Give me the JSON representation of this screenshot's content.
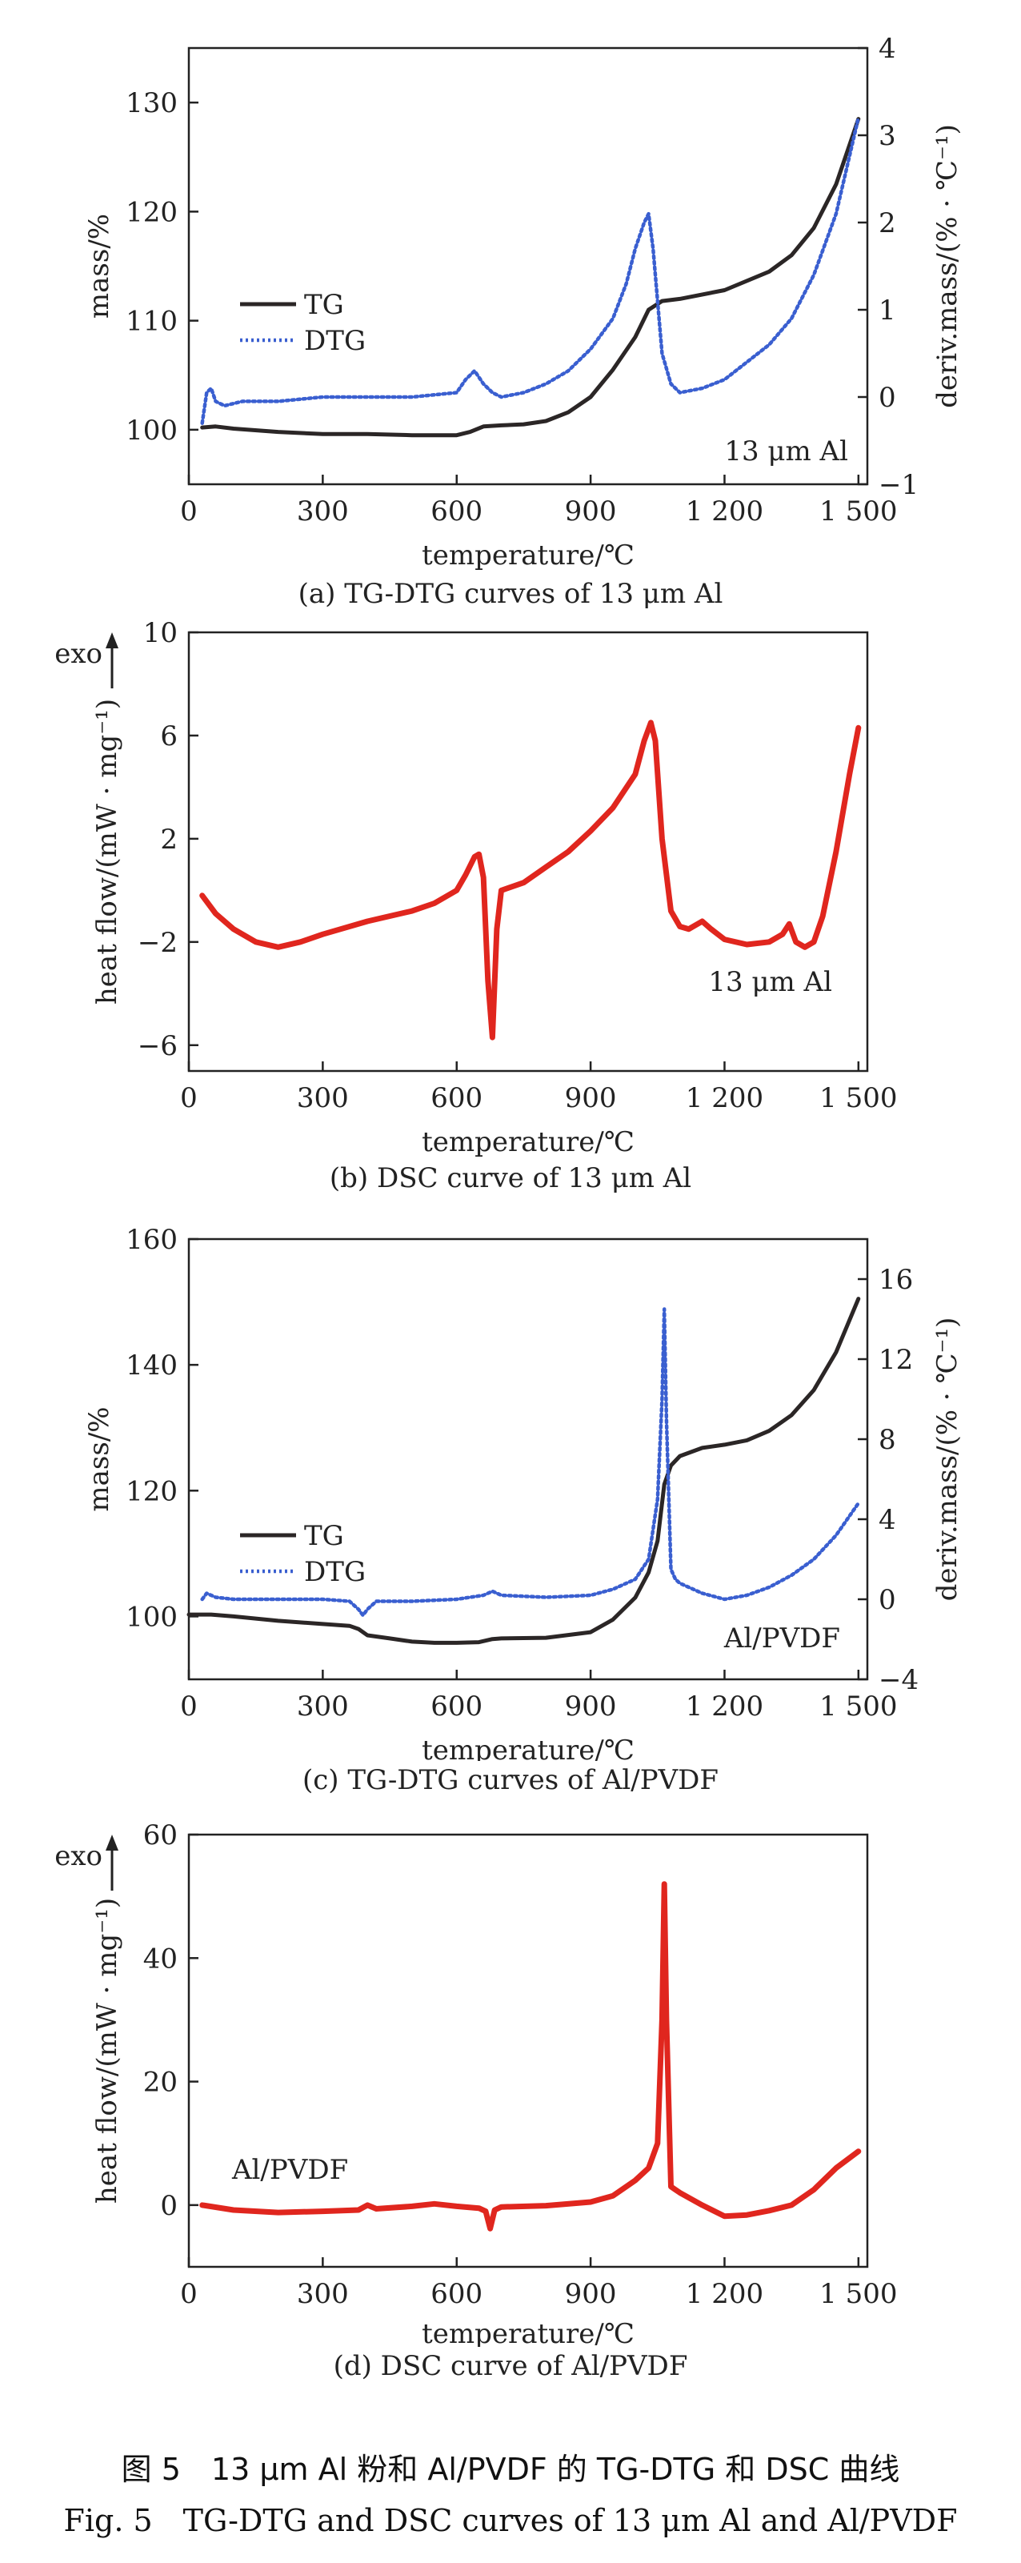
{
  "colors": {
    "tg": "#2b2626",
    "dtg": "#3a5fd0",
    "dsc": "#e0261e",
    "axis": "#222222"
  },
  "chart_data": [
    {
      "id": "a",
      "type": "line",
      "caption": "(a) TG-DTG curves of 13 μm Al",
      "xlabel": "temperature/℃",
      "ylabel": "mass/%",
      "y2label": "deriv.mass/(% · ℃⁻¹)",
      "annotation": "13 μm Al",
      "xlim": [
        0,
        1520
      ],
      "ylim": [
        95,
        135
      ],
      "y2lim": [
        -1,
        4
      ],
      "xticks": [
        0,
        300,
        600,
        900,
        1200,
        1500
      ],
      "xtick_labels": [
        "0",
        "300",
        "600",
        "900",
        "1 200",
        "1 500"
      ],
      "yticks": [
        100,
        110,
        120,
        130
      ],
      "ytick_labels": [
        "100",
        "110",
        "120",
        "130"
      ],
      "y2ticks": [
        -1,
        0,
        1,
        2,
        3,
        4
      ],
      "y2tick_labels": [
        "−1",
        "0",
        "1",
        "2",
        "3",
        "4"
      ],
      "legend": [
        "TG",
        "DTG"
      ],
      "series": [
        {
          "name": "TG",
          "axis": "left",
          "style": "solid",
          "x": [
            30,
            60,
            100,
            200,
            300,
            400,
            500,
            600,
            630,
            660,
            700,
            750,
            800,
            850,
            900,
            950,
            1000,
            1030,
            1060,
            1100,
            1200,
            1300,
            1350,
            1400,
            1450,
            1500
          ],
          "y": [
            100.2,
            100.3,
            100.1,
            99.8,
            99.6,
            99.6,
            99.5,
            99.5,
            99.8,
            100.3,
            100.4,
            100.5,
            100.8,
            101.6,
            103.0,
            105.5,
            108.5,
            111.0,
            111.8,
            112.0,
            112.8,
            114.5,
            116.0,
            118.5,
            122.5,
            128.5
          ]
        },
        {
          "name": "DTG",
          "axis": "right",
          "style": "dotted",
          "x": [
            30,
            40,
            50,
            60,
            80,
            120,
            200,
            300,
            400,
            500,
            600,
            620,
            640,
            660,
            680,
            700,
            750,
            800,
            850,
            900,
            950,
            980,
            1000,
            1020,
            1030,
            1040,
            1060,
            1080,
            1100,
            1150,
            1200,
            1250,
            1300,
            1350,
            1400,
            1450,
            1500
          ],
          "y": [
            -0.3,
            0.05,
            0.1,
            -0.05,
            -0.1,
            -0.05,
            -0.05,
            0.0,
            0.0,
            0.0,
            0.05,
            0.2,
            0.3,
            0.15,
            0.05,
            0.0,
            0.05,
            0.15,
            0.3,
            0.55,
            0.9,
            1.3,
            1.7,
            2.0,
            2.1,
            1.7,
            0.5,
            0.15,
            0.05,
            0.1,
            0.2,
            0.4,
            0.6,
            0.9,
            1.4,
            2.1,
            3.2
          ]
        }
      ]
    },
    {
      "id": "b",
      "type": "line",
      "caption": "(b) DSC curve of 13 μm Al",
      "xlabel": "temperature/℃",
      "ylabel": "heat flow/(mW · mg⁻¹)",
      "exo_label": "exo",
      "annotation": "13 μm Al",
      "xlim": [
        0,
        1520
      ],
      "ylim": [
        -7,
        10
      ],
      "xticks": [
        0,
        300,
        600,
        900,
        1200,
        1500
      ],
      "xtick_labels": [
        "0",
        "300",
        "600",
        "900",
        "1 200",
        "1 500"
      ],
      "yticks": [
        -6,
        -2,
        2,
        6,
        10
      ],
      "ytick_labels": [
        "−6",
        "−2",
        "2",
        "6",
        "10"
      ],
      "series": [
        {
          "name": "DSC",
          "axis": "left",
          "style": "solid",
          "x": [
            30,
            60,
            100,
            150,
            200,
            250,
            300,
            400,
            500,
            550,
            600,
            620,
            640,
            650,
            660,
            670,
            680,
            690,
            700,
            750,
            800,
            850,
            900,
            950,
            1000,
            1020,
            1035,
            1045,
            1060,
            1080,
            1100,
            1120,
            1150,
            1170,
            1200,
            1250,
            1300,
            1330,
            1345,
            1360,
            1380,
            1400,
            1420,
            1450,
            1480,
            1500
          ],
          "y": [
            -0.2,
            -0.9,
            -1.5,
            -2.0,
            -2.2,
            -2.0,
            -1.7,
            -1.2,
            -0.8,
            -0.5,
            0.0,
            0.6,
            1.3,
            1.4,
            0.5,
            -3.5,
            -5.7,
            -1.5,
            0.0,
            0.3,
            0.9,
            1.5,
            2.3,
            3.2,
            4.5,
            5.8,
            6.5,
            5.8,
            2.0,
            -0.8,
            -1.4,
            -1.5,
            -1.2,
            -1.5,
            -1.9,
            -2.1,
            -2.0,
            -1.7,
            -1.3,
            -2.0,
            -2.2,
            -2.0,
            -1.0,
            1.5,
            4.5,
            6.3
          ]
        }
      ]
    },
    {
      "id": "c",
      "type": "line",
      "caption": "(c) TG-DTG curves of Al/PVDF",
      "xlabel": "temperature/℃",
      "ylabel": "mass/%",
      "y2label": "deriv.mass/(% · ℃⁻¹)",
      "annotation": "Al/PVDF",
      "xlim": [
        0,
        1520
      ],
      "ylim": [
        90,
        160
      ],
      "y2lim": [
        -4,
        18
      ],
      "xticks": [
        0,
        300,
        600,
        900,
        1200,
        1500
      ],
      "xtick_labels": [
        "0",
        "300",
        "600",
        "900",
        "1 200",
        "1 500"
      ],
      "yticks": [
        100,
        120,
        140,
        160
      ],
      "ytick_labels": [
        "100",
        "120",
        "140",
        "160"
      ],
      "y2ticks": [
        -4,
        0,
        4,
        8,
        12,
        16
      ],
      "y2tick_labels": [
        "−4",
        "0",
        "4",
        "8",
        "12",
        "16"
      ],
      "legend": [
        "TG",
        "DTG"
      ],
      "series": [
        {
          "name": "TG",
          "axis": "left",
          "style": "solid",
          "x": [
            0,
            50,
            100,
            200,
            300,
            360,
            380,
            400,
            450,
            500,
            550,
            600,
            650,
            680,
            700,
            800,
            900,
            950,
            1000,
            1030,
            1050,
            1065,
            1080,
            1100,
            1150,
            1200,
            1250,
            1300,
            1350,
            1400,
            1450,
            1500
          ],
          "y": [
            100.3,
            100.3,
            100.0,
            99.3,
            98.8,
            98.5,
            98.0,
            97.0,
            96.5,
            96.0,
            95.8,
            95.8,
            95.9,
            96.4,
            96.5,
            96.6,
            97.5,
            99.5,
            103.0,
            107.0,
            112.0,
            121.0,
            124.0,
            125.5,
            126.8,
            127.3,
            128.0,
            129.5,
            132.0,
            136.0,
            142.0,
            150.5
          ]
        },
        {
          "name": "DTG",
          "axis": "right",
          "style": "dotted",
          "x": [
            30,
            40,
            60,
            100,
            200,
            300,
            360,
            380,
            390,
            400,
            420,
            500,
            600,
            660,
            680,
            700,
            800,
            900,
            950,
            1000,
            1030,
            1050,
            1060,
            1065,
            1070,
            1080,
            1090,
            1100,
            1150,
            1200,
            1250,
            1300,
            1350,
            1400,
            1450,
            1500
          ],
          "y": [
            0.0,
            0.3,
            0.1,
            0.0,
            0.0,
            0.0,
            -0.1,
            -0.5,
            -0.8,
            -0.5,
            -0.1,
            -0.1,
            0.0,
            0.2,
            0.4,
            0.2,
            0.1,
            0.2,
            0.5,
            1.0,
            2.0,
            5.0,
            10.0,
            14.5,
            9.0,
            1.5,
            1.0,
            0.8,
            0.3,
            0.0,
            0.2,
            0.6,
            1.2,
            2.0,
            3.2,
            4.8
          ]
        }
      ]
    },
    {
      "id": "d",
      "type": "line",
      "caption": "(d) DSC curve of Al/PVDF",
      "xlabel": "temperature/℃",
      "ylabel": "heat flow/(mW · mg⁻¹)",
      "exo_label": "exo",
      "annotation": "Al/PVDF",
      "xlim": [
        0,
        1520
      ],
      "ylim": [
        -10,
        60
      ],
      "xticks": [
        0,
        300,
        600,
        900,
        1200,
        1500
      ],
      "xtick_labels": [
        "0",
        "300",
        "600",
        "900",
        "1 200",
        "1 500"
      ],
      "yticks": [
        0,
        20,
        40,
        60
      ],
      "ytick_labels": [
        "0",
        "20",
        "40",
        "60"
      ],
      "series": [
        {
          "name": "DSC",
          "axis": "left",
          "style": "solid",
          "x": [
            30,
            100,
            200,
            300,
            380,
            400,
            420,
            500,
            550,
            600,
            650,
            665,
            675,
            685,
            700,
            800,
            900,
            950,
            980,
            1000,
            1030,
            1050,
            1060,
            1065,
            1070,
            1080,
            1090,
            1100,
            1150,
            1200,
            1250,
            1300,
            1350,
            1400,
            1450,
            1500
          ],
          "y": [
            0.0,
            -0.8,
            -1.2,
            -1.0,
            -0.8,
            0.0,
            -0.6,
            -0.2,
            0.2,
            -0.2,
            -0.5,
            -1.0,
            -3.8,
            -0.8,
            -0.3,
            -0.1,
            0.5,
            1.5,
            3.0,
            4.0,
            6.0,
            10.0,
            30.0,
            52.0,
            30.0,
            3.0,
            2.5,
            2.0,
            0.0,
            -1.8,
            -1.6,
            -0.9,
            0.0,
            2.5,
            6.0,
            8.7
          ]
        }
      ]
    }
  ],
  "figure": {
    "caption_cn": "图 5　13 μm Al 粉和 Al/PVDF 的 TG-DTG 和 DSC 曲线",
    "caption_en": "Fig. 5　TG-DTG and DSC curves of 13 μm Al and Al/PVDF"
  }
}
